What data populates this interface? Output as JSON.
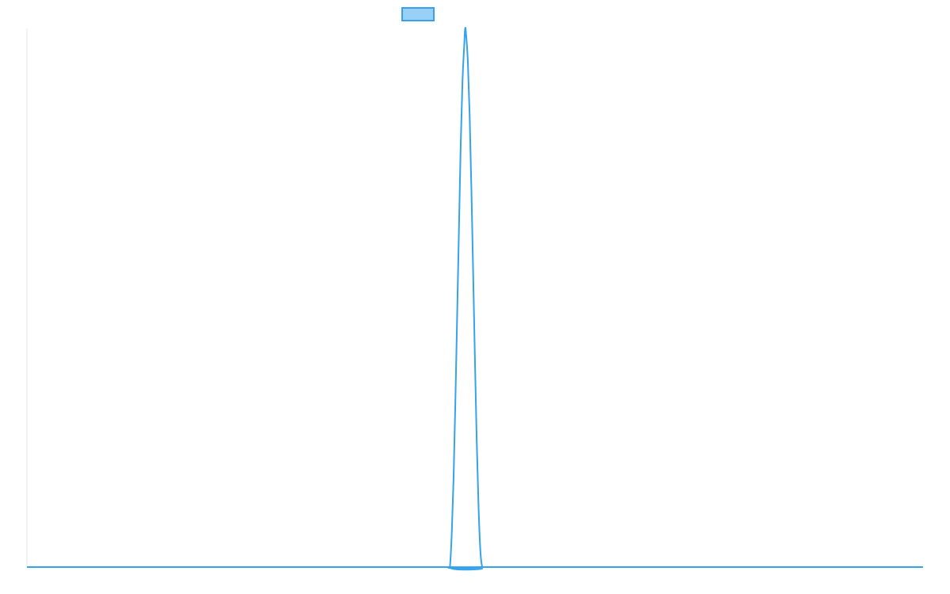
{
  "chart_data": {
    "type": "line",
    "title": "",
    "xlabel": "",
    "ylabel": "",
    "xlim": [
      0,
      1000
    ],
    "ylim": [
      0,
      1
    ],
    "grid": false,
    "legend": {
      "placement": "top-center",
      "entries": [
        {
          "label": "",
          "swatch_fill": "#9ad0f5",
          "swatch_stroke": "#36a2eb"
        }
      ]
    },
    "series": [
      {
        "color": "#36a2eb",
        "x": [
          0,
          470,
          472,
          474,
          476,
          478,
          480,
          482,
          484,
          486,
          488,
          489,
          490,
          492,
          494,
          496,
          498,
          500,
          502,
          504,
          506,
          508,
          510,
          1000
        ],
        "y": [
          0,
          0,
          0.0,
          0.06,
          0.16,
          0.3,
          0.46,
          0.62,
          0.78,
          0.9,
          0.97,
          1.0,
          0.99,
          0.94,
          0.84,
          0.7,
          0.54,
          0.38,
          0.23,
          0.11,
          0.03,
          0.0,
          0,
          0
        ]
      }
    ]
  }
}
